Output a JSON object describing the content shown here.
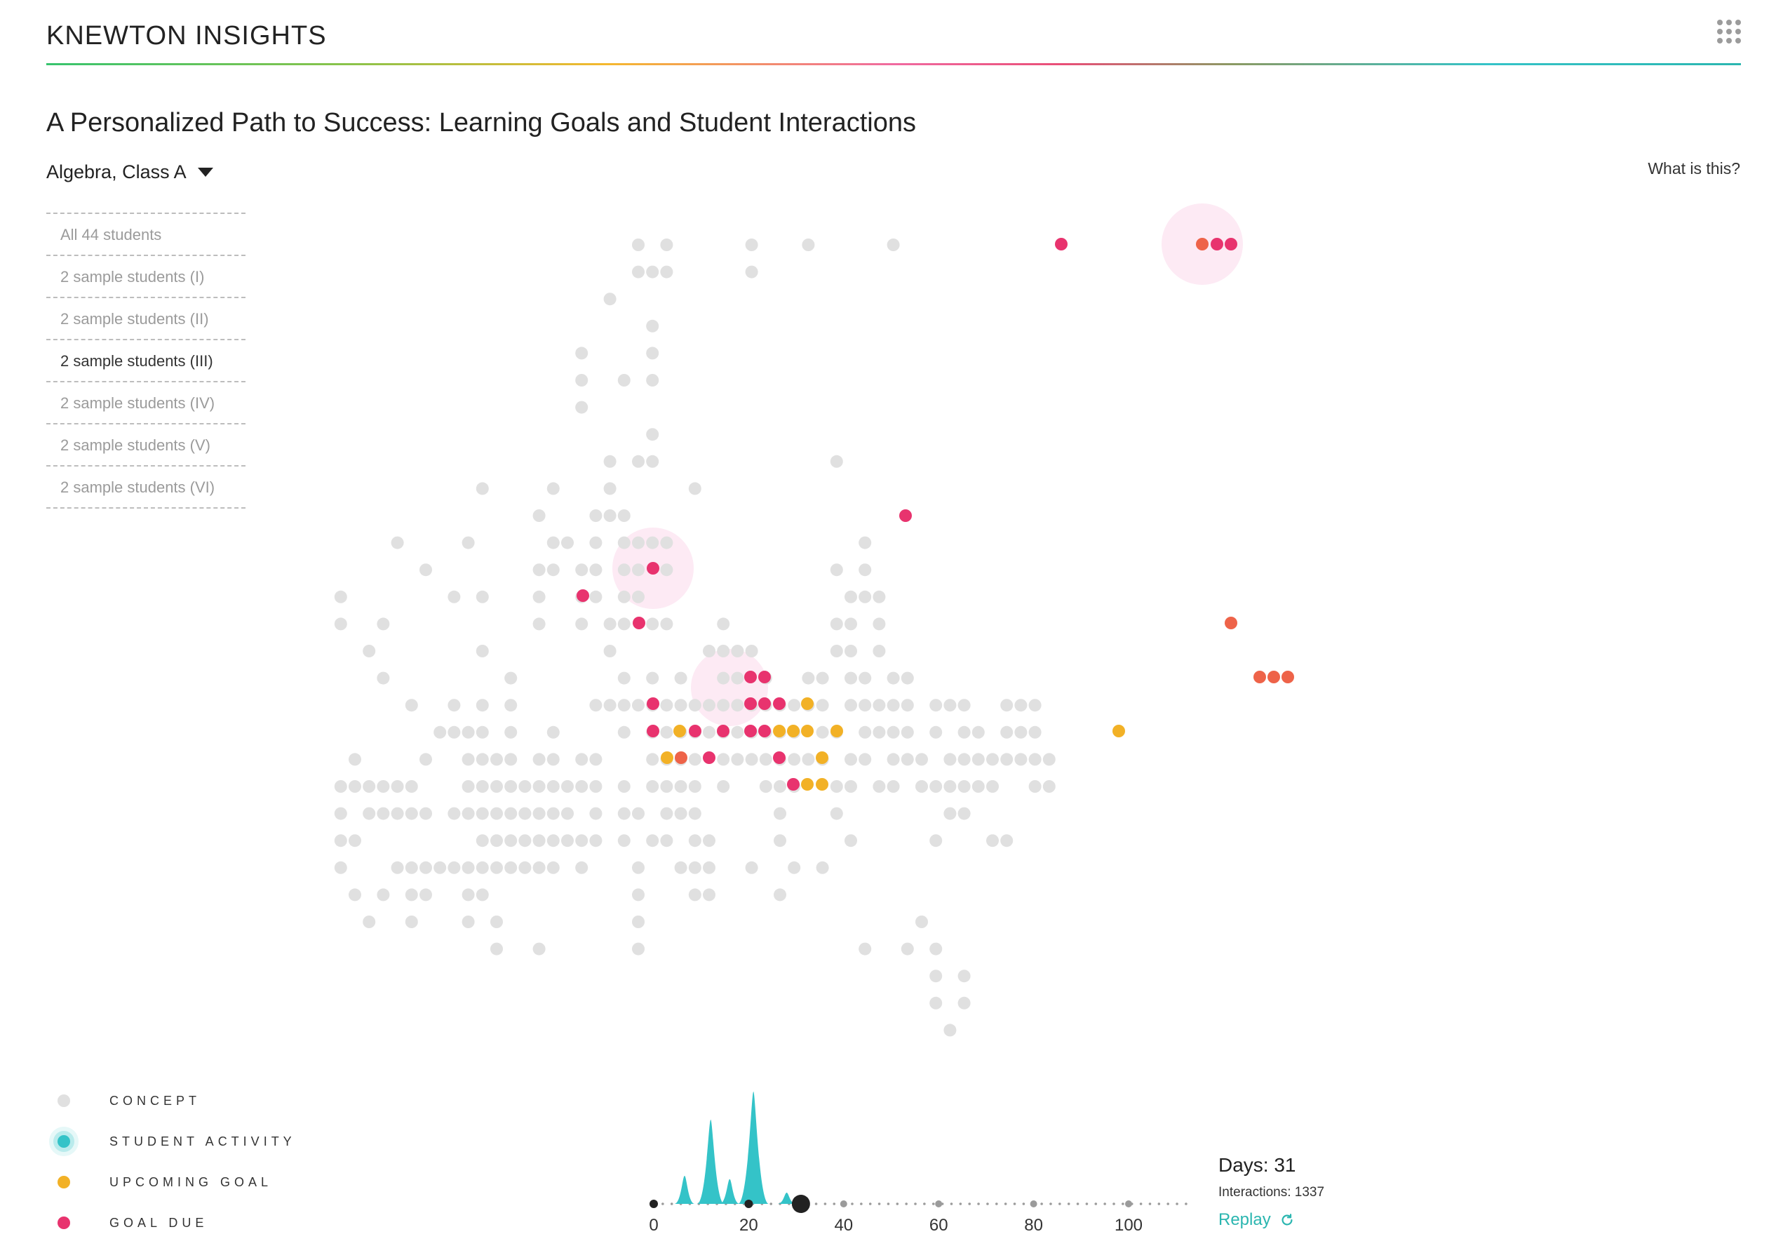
{
  "header": {
    "brand": "KNEWTON INSIGHTS",
    "apps_icon": "grid-icon"
  },
  "page": {
    "title": "A Personalized Path to Success: Learning Goals and Student Interactions"
  },
  "class_select": {
    "value": "Algebra, Class A",
    "icon": "caret-down-icon"
  },
  "help_link": "What is this?",
  "student_groups": [
    {
      "label": "All 44 students",
      "active": false
    },
    {
      "label": "2 sample students (I)",
      "active": false
    },
    {
      "label": "2 sample students (II)",
      "active": false
    },
    {
      "label": "2 sample students (III)",
      "active": true
    },
    {
      "label": "2 sample students (IV)",
      "active": false
    },
    {
      "label": "2 sample students (V)",
      "active": false
    },
    {
      "label": "2 sample students (VI)",
      "active": false
    }
  ],
  "colors": {
    "concept": "#e0e0e0",
    "student_activity": "#34c3c8",
    "upcoming_goal": "#f2b126",
    "goal_due": "#e8336e",
    "goal_due_alt": "#ee6349",
    "halo": "#fdeaf4"
  },
  "legend": [
    {
      "label": "CONCEPT",
      "color": "#e0e0e0",
      "kind": "concept"
    },
    {
      "label": "STUDENT ACTIVITY",
      "color": "#34c3c8",
      "kind": "activity"
    },
    {
      "label": "UPCOMING GOAL",
      "color": "#f2b126",
      "kind": "upcoming"
    },
    {
      "label": "GOAL DUE",
      "color": "#e8336e",
      "kind": "due"
    }
  ],
  "timeline": {
    "ticks": [
      "0",
      "20",
      "40",
      "60",
      "80",
      "100"
    ],
    "current_day": 31,
    "max_day": 114,
    "activity_peaks": [
      {
        "day": 6.5,
        "value": 0.25
      },
      {
        "day": 12,
        "value": 0.75
      },
      {
        "day": 16,
        "value": 0.22
      },
      {
        "day": 21,
        "value": 1.0
      },
      {
        "day": 28,
        "value": 0.1
      }
    ]
  },
  "info": {
    "days_label": "Days: 31",
    "interactions_label": "Interactions: 1337",
    "replay_label": "Replay",
    "replay_icon": "refresh-icon"
  }
}
